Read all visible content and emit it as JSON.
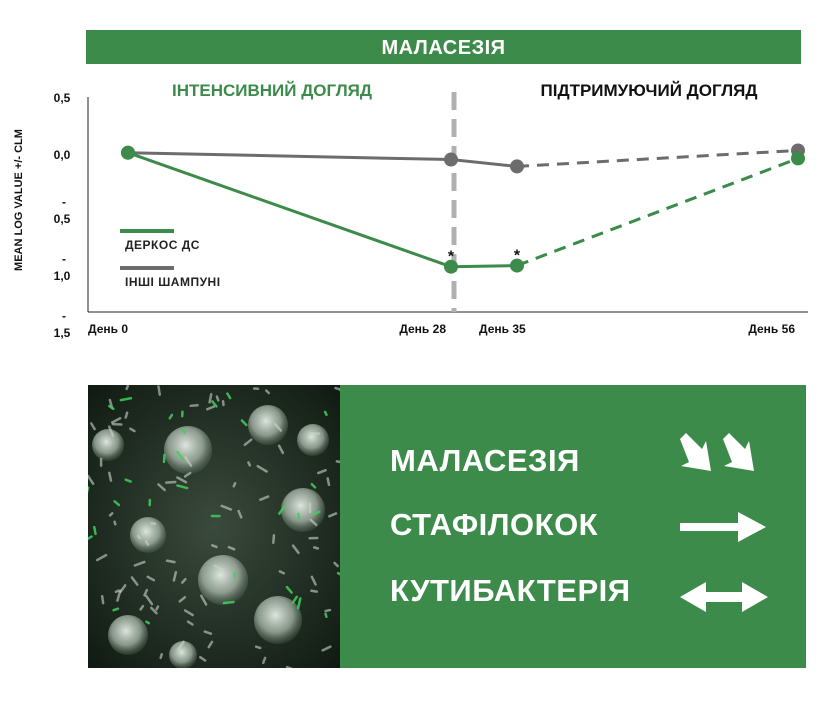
{
  "title": "МАЛАСЕЗІЯ",
  "colors": {
    "green": "#3d8b4a",
    "gray": "#6e6b6d",
    "divider": "#b0b0b0"
  },
  "chart_data": {
    "type": "line",
    "phases": [
      "ІНТЕНСИВНИЙ ДОГЛЯД",
      "ПІДТРИМУЮЧИЙ ДОГЛЯД"
    ],
    "ylabel": "MEAN LOG VALUE +/- CLM",
    "y_ticks": [
      "0,5",
      "0,0",
      "-0,5",
      "-1,0",
      "-1,5"
    ],
    "ylim": [
      -1.5,
      0.5
    ],
    "x_ticks": [
      "День 0",
      "День 28",
      "День 35",
      "День 56"
    ],
    "x": [
      0,
      28,
      35,
      56
    ],
    "series": [
      {
        "name": "ДЕРКОС ДС",
        "values": [
          0.02,
          -0.98,
          -0.97,
          -0.03
        ],
        "significant": [
          false,
          true,
          true,
          false
        ]
      },
      {
        "name": "ІНШІ ШАМПУНІ",
        "values": [
          0.02,
          -0.04,
          -0.1,
          0.04
        ],
        "significant": [
          false,
          false,
          false,
          false
        ]
      }
    ],
    "annotation": "*"
  },
  "results": [
    {
      "label": "МАЛАСЕЗІЯ",
      "icon": "double-down-right-arrow-icon"
    },
    {
      "label": "СТАФІЛОКОК",
      "icon": "right-arrow-icon"
    },
    {
      "label": "КУТИБАКТЕРІЯ",
      "icon": "left-right-arrow-icon"
    }
  ]
}
